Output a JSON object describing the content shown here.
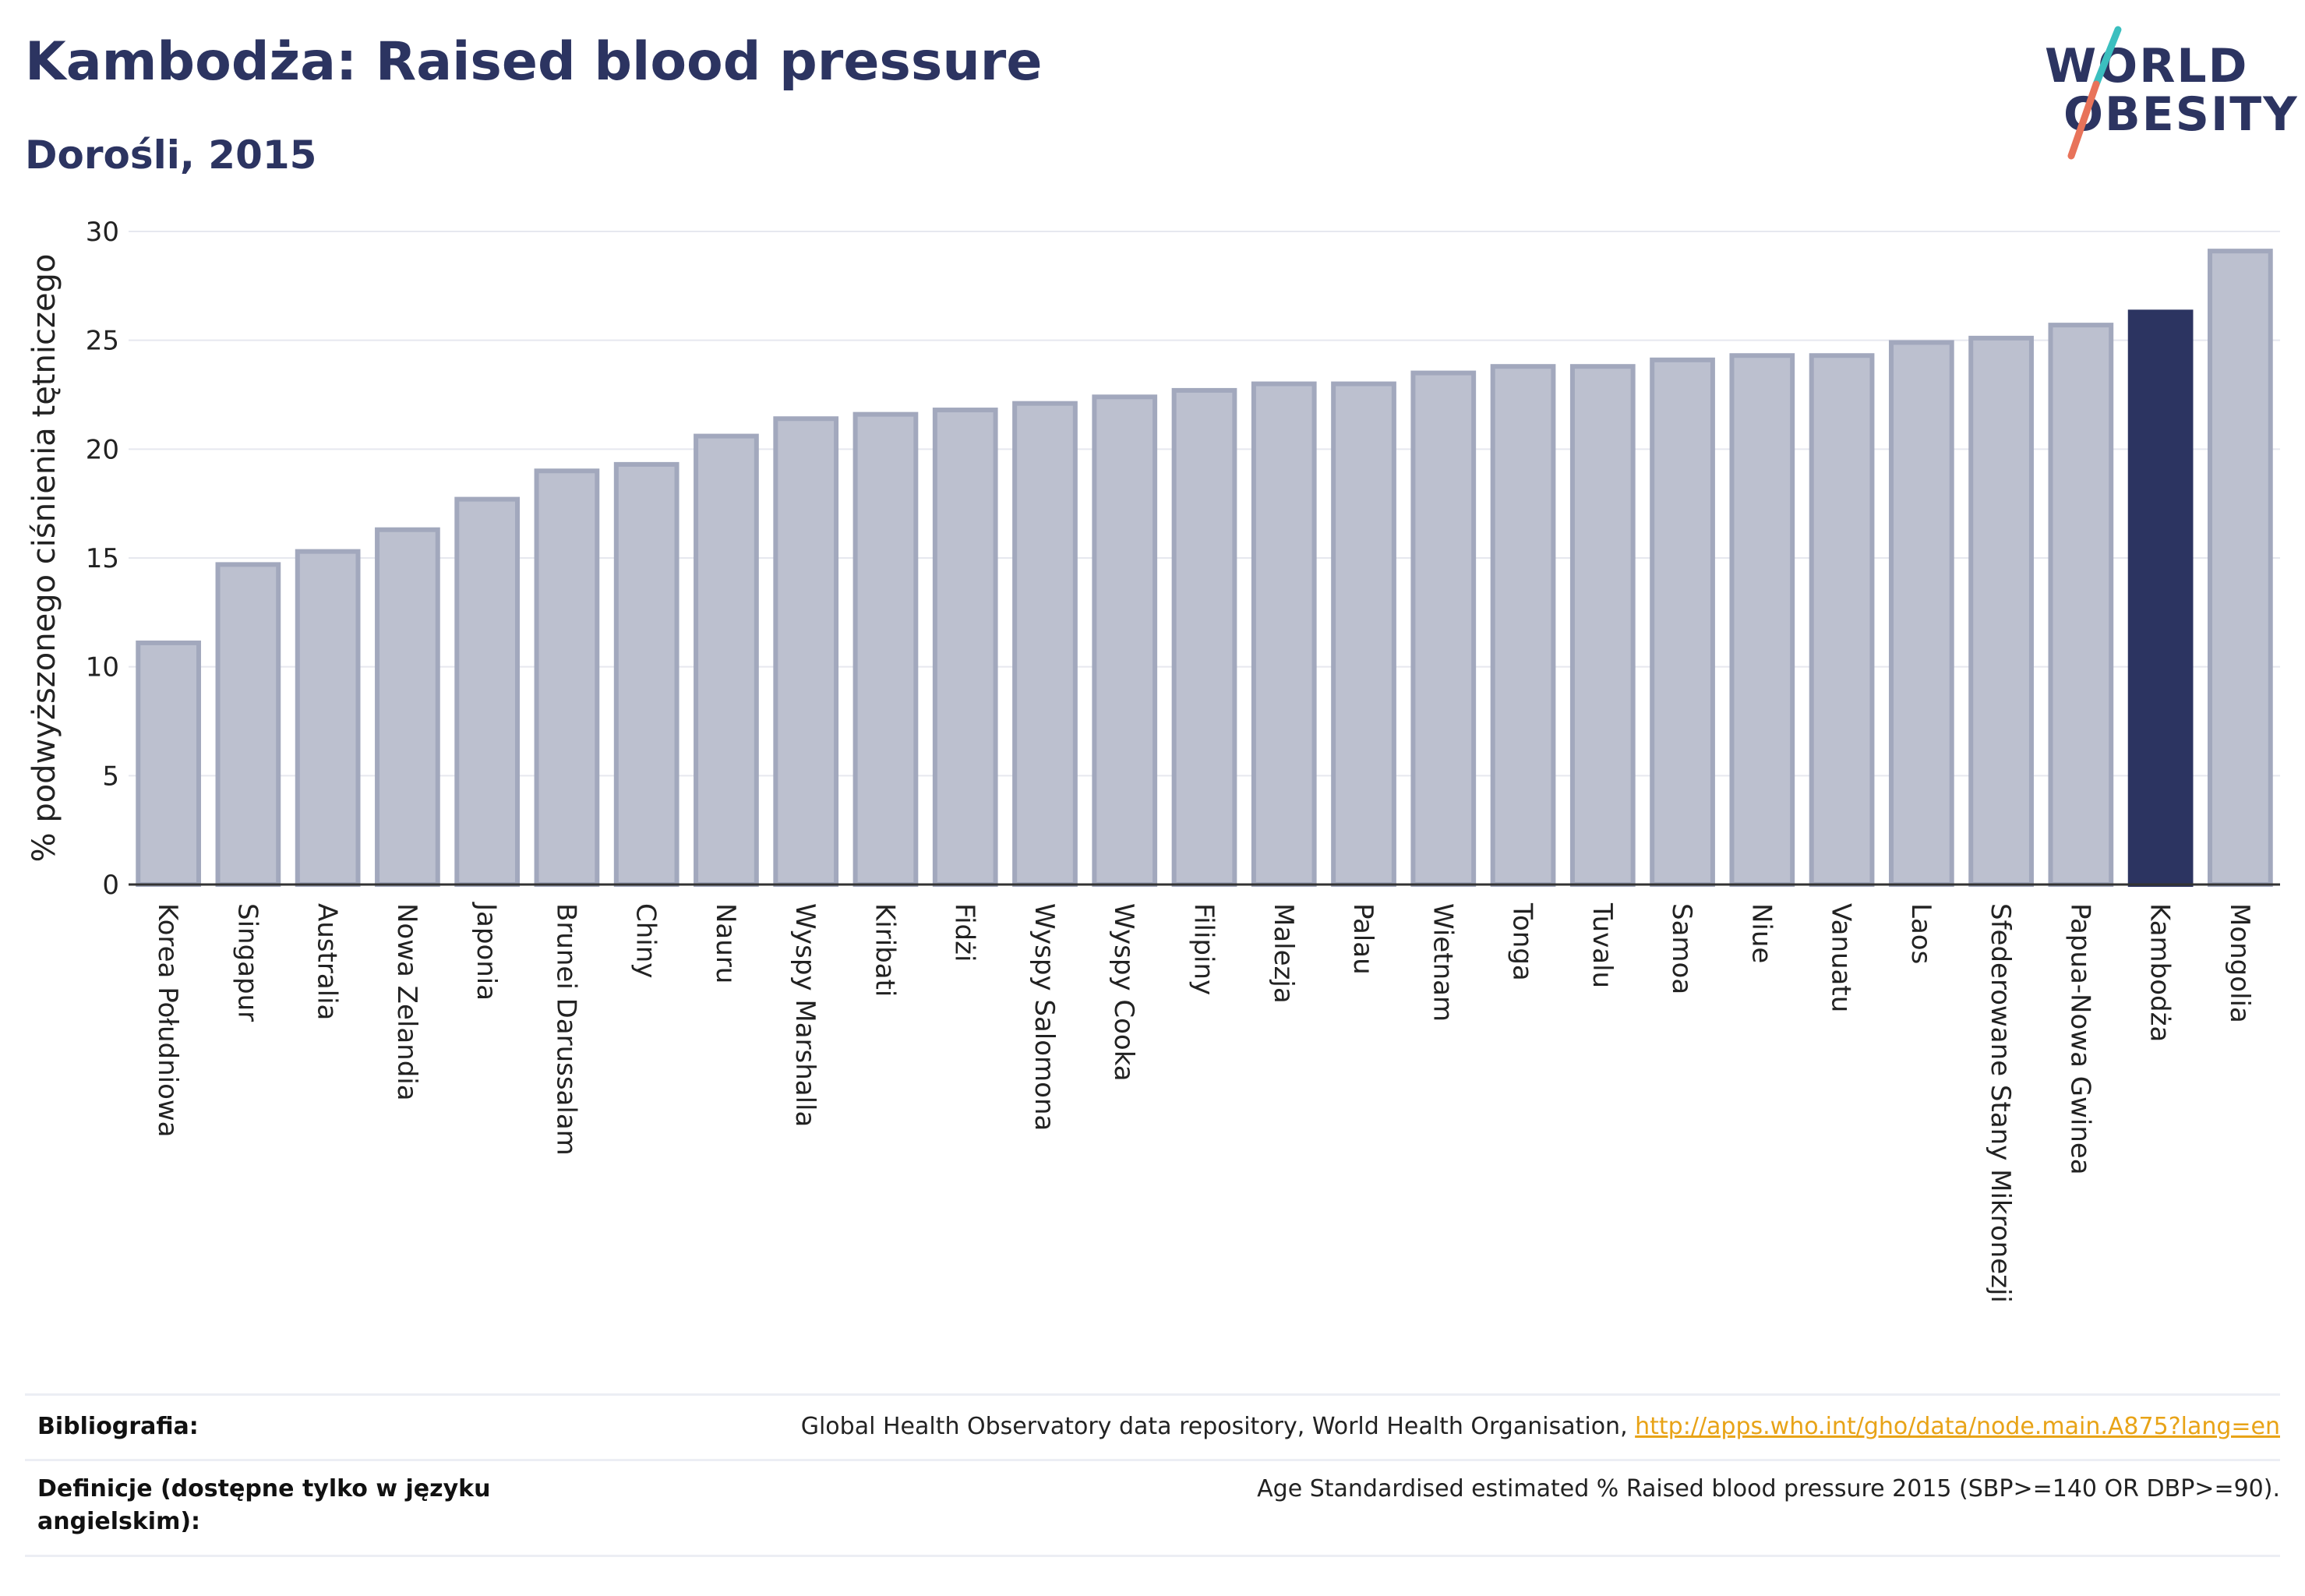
{
  "header": {
    "title": "Kambodża: Raised blood pressure",
    "subtitle": "Dorośli, 2015"
  },
  "logo": {
    "line1": "WORLD",
    "line2": "OBESITY",
    "colors": {
      "text": "#2c3461",
      "slash_top": "#3bbfbf",
      "slash_bottom": "#e8735a"
    }
  },
  "chart_data": {
    "type": "bar",
    "title": "",
    "xlabel": "",
    "ylabel": "% podwyższonego ciśnienia tętniczego",
    "ylim": [
      0,
      30
    ],
    "yticks": [
      0,
      5,
      10,
      15,
      20,
      25,
      30
    ],
    "grid": true,
    "highlight": "Kambodża",
    "colors": {
      "bar": "#bcc0cf",
      "bar_edge": "#a2a8bd",
      "highlight": "#2c3461",
      "grid": "#e6e8ef",
      "axis": "#333333"
    },
    "categories": [
      "Korea Południowa",
      "Singapur",
      "Australia",
      "Nowa Zelandia",
      "Japonia",
      "Brunei Darussalam",
      "Chiny",
      "Nauru",
      "Wyspy Marshalla",
      "Kiribati",
      "Fidżi",
      "Wyspy Salomona",
      "Wyspy Cooka",
      "Filipiny",
      "Malezja",
      "Palau",
      "Wietnam",
      "Tonga",
      "Tuvalu",
      "Samoa",
      "Niue",
      "Vanuatu",
      "Laos",
      "Sfederowane Stany Mikronezji",
      "Papua-Nowa Gwinea",
      "Kambodża",
      "Mongolia"
    ],
    "values": [
      11.1,
      14.7,
      15.3,
      16.3,
      17.7,
      19.0,
      19.3,
      20.6,
      21.4,
      21.6,
      21.8,
      22.1,
      22.4,
      22.7,
      23.0,
      23.0,
      23.5,
      23.8,
      23.8,
      24.1,
      24.3,
      24.3,
      24.9,
      25.1,
      25.7,
      26.3,
      29.1
    ]
  },
  "footer": {
    "bibliography_label": "Bibliografia:",
    "bibliography_text": "Global Health Observatory data repository, World Health Organisation, ",
    "bibliography_link": "http://apps.who.int/gho/data/node.main.A875?lang=en",
    "definitions_label": "Definicje (dostępne tylko w języku angielskim):",
    "definitions_text": "Age Standardised estimated % Raised blood pressure 2015 (SBP>=140 OR DBP>=90)."
  }
}
